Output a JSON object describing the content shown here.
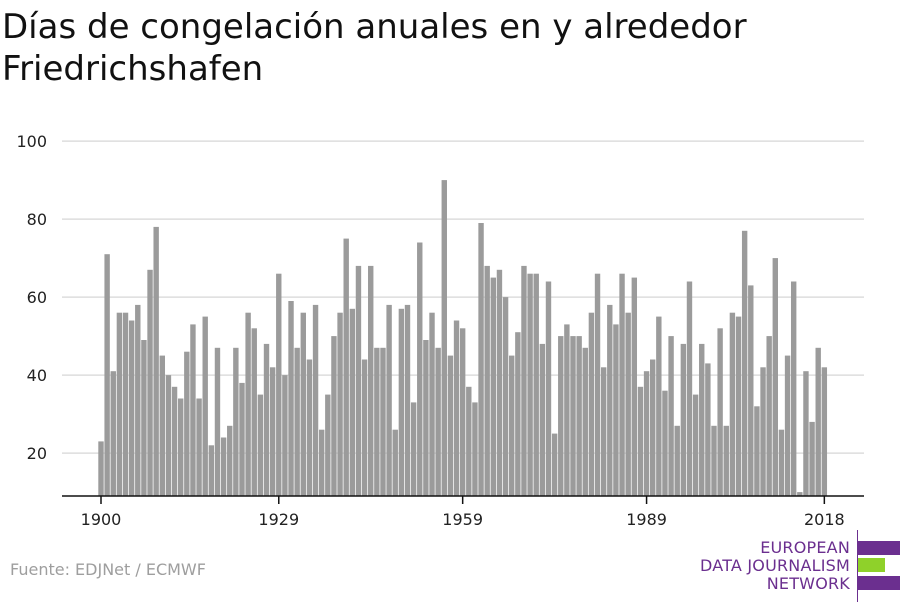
{
  "title": "Días de congelación anuales en y alrededor Friedrichshafen",
  "source": "Fuente: EDJNet / ECMWF",
  "logo": {
    "line1": "EUROPEAN",
    "line2": "DATA JOURNALISM",
    "line3": "NETWORK",
    "colors": [
      "#6b2f8f",
      "#8fd12a"
    ]
  },
  "chart_data": {
    "type": "bar",
    "title": "Días de congelación anuales en y alrededor Friedrichshafen",
    "xlabel": "",
    "ylabel": "",
    "x_start": 1900,
    "x_end": 2018,
    "xticks": [
      1900,
      1929,
      1959,
      1989,
      2018
    ],
    "yticks": [
      20,
      40,
      60,
      80,
      100
    ],
    "ylim": [
      9,
      100
    ],
    "grid": true,
    "bar_color": "#9b9b9b",
    "values": [
      23,
      71,
      41,
      56,
      56,
      54,
      58,
      49,
      67,
      78,
      45,
      40,
      37,
      34,
      46,
      53,
      34,
      55,
      22,
      47,
      24,
      27,
      47,
      38,
      56,
      52,
      35,
      48,
      42,
      66,
      40,
      59,
      47,
      56,
      44,
      58,
      26,
      35,
      50,
      56,
      75,
      57,
      68,
      44,
      68,
      47,
      47,
      58,
      26,
      57,
      58,
      33,
      74,
      49,
      56,
      47,
      90,
      45,
      54,
      52,
      37,
      33,
      79,
      68,
      65,
      67,
      60,
      45,
      51,
      68,
      66,
      66,
      48,
      64,
      25,
      50,
      53,
      50,
      50,
      47,
      56,
      66,
      42,
      58,
      53,
      66,
      56,
      65,
      37,
      41,
      44,
      55,
      36,
      50,
      27,
      48,
      64,
      35,
      48,
      43,
      27,
      52,
      27,
      56,
      55,
      77,
      63,
      32,
      42,
      50,
      70,
      26,
      45,
      64,
      10,
      41,
      28,
      47,
      42
    ]
  }
}
